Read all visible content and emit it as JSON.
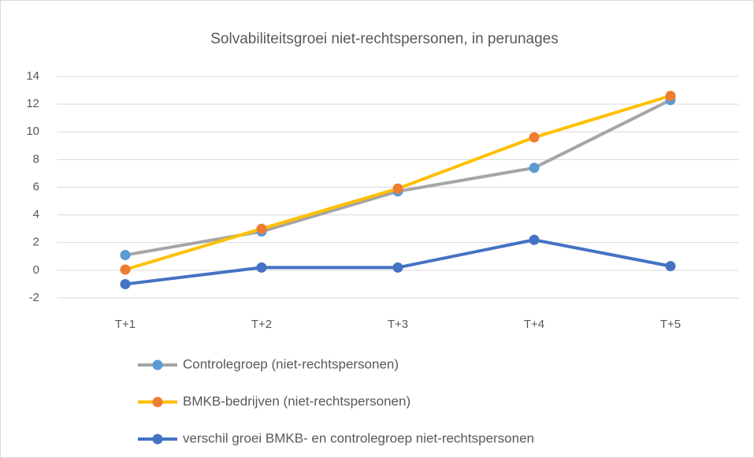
{
  "chart_data": {
    "type": "line",
    "title": "Solvabiliteitsgroei niet-rechtspersonen,  in perunages",
    "categories": [
      "T+1",
      "T+2",
      "T+3",
      "T+4",
      "T+5"
    ],
    "series": [
      {
        "name": "Controlegroep (niet-rechtspersonen)",
        "color": "#a5a5a5",
        "marker_color": "#5b9bd5",
        "values": [
          1.1,
          2.8,
          5.7,
          7.4,
          12.3
        ]
      },
      {
        "name": "BMKB-bedrijven (niet-rechtspersonen)",
        "color": "#ffc000",
        "marker_color": "#ed7d31",
        "values": [
          0.05,
          3.0,
          5.9,
          9.6,
          12.6
        ]
      },
      {
        "name": "verschil groei BMKB- en controlegroep niet-rechtspersonen",
        "color": "#4472c4",
        "marker_color": "#4472c4",
        "values": [
          -1.0,
          0.2,
          0.2,
          2.2,
          0.3
        ]
      }
    ],
    "ylim": [
      -2,
      14
    ],
    "yticks": [
      -2,
      0,
      2,
      4,
      6,
      8,
      10,
      12,
      14
    ],
    "grid": true,
    "legend": "bottom"
  }
}
